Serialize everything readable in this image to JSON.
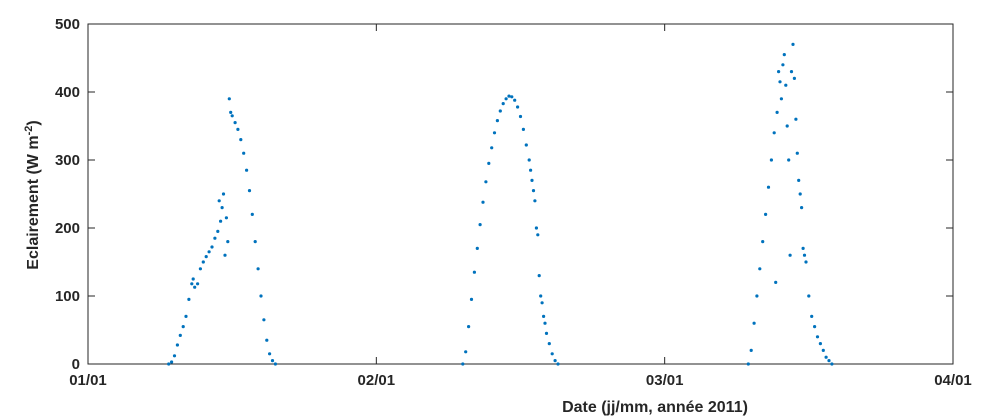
{
  "chart_data": {
    "type": "scatter",
    "xlabel": "Date (jj/mm, année 2011)",
    "ylabel_main": "Eclairement (W m",
    "ylabel_sup": "-2",
    "ylabel_close": ")",
    "x_range_days": [
      0,
      3
    ],
    "ylim": [
      0,
      500
    ],
    "x_tick_values": [
      0,
      1,
      2,
      3
    ],
    "x_ticks": [
      "01/01",
      "02/01",
      "03/01",
      "04/01"
    ],
    "y_ticks": [
      0,
      100,
      200,
      300,
      400,
      500
    ],
    "y_tick_labels": [
      "0",
      "100",
      "200",
      "300",
      "400",
      "500"
    ],
    "grid": false,
    "marker_color": "#0072BD",
    "series": [
      {
        "values": [
          [
            0.28,
            0
          ],
          [
            0.29,
            3
          ],
          [
            0.3,
            12
          ],
          [
            0.31,
            28
          ],
          [
            0.32,
            42
          ],
          [
            0.33,
            55
          ],
          [
            0.34,
            70
          ],
          [
            0.35,
            95
          ],
          [
            0.36,
            118
          ],
          [
            0.365,
            125
          ],
          [
            0.37,
            113
          ],
          [
            0.38,
            118
          ],
          [
            0.39,
            140
          ],
          [
            0.4,
            150
          ],
          [
            0.41,
            158
          ],
          [
            0.42,
            165
          ],
          [
            0.43,
            172
          ],
          [
            0.44,
            185
          ],
          [
            0.45,
            195
          ],
          [
            0.455,
            240
          ],
          [
            0.46,
            210
          ],
          [
            0.465,
            230
          ],
          [
            0.47,
            250
          ],
          [
            0.475,
            160
          ],
          [
            0.48,
            215
          ],
          [
            0.485,
            180
          ],
          [
            0.49,
            390
          ],
          [
            0.495,
            370
          ],
          [
            0.5,
            365
          ],
          [
            0.51,
            355
          ],
          [
            0.52,
            345
          ],
          [
            0.53,
            330
          ],
          [
            0.54,
            310
          ],
          [
            0.55,
            285
          ],
          [
            0.56,
            255
          ],
          [
            0.57,
            220
          ],
          [
            0.58,
            180
          ],
          [
            0.59,
            140
          ],
          [
            0.6,
            100
          ],
          [
            0.61,
            65
          ],
          [
            0.62,
            35
          ],
          [
            0.63,
            15
          ],
          [
            0.64,
            5
          ],
          [
            0.65,
            0
          ]
        ]
      },
      {
        "values": [
          [
            1.3,
            0
          ],
          [
            1.31,
            18
          ],
          [
            1.32,
            55
          ],
          [
            1.33,
            95
          ],
          [
            1.34,
            135
          ],
          [
            1.35,
            170
          ],
          [
            1.36,
            205
          ],
          [
            1.37,
            238
          ],
          [
            1.38,
            268
          ],
          [
            1.39,
            295
          ],
          [
            1.4,
            318
          ],
          [
            1.41,
            340
          ],
          [
            1.42,
            358
          ],
          [
            1.43,
            372
          ],
          [
            1.44,
            383
          ],
          [
            1.45,
            390
          ],
          [
            1.46,
            394
          ],
          [
            1.47,
            393
          ],
          [
            1.48,
            388
          ],
          [
            1.49,
            378
          ],
          [
            1.5,
            364
          ],
          [
            1.51,
            345
          ],
          [
            1.52,
            322
          ],
          [
            1.53,
            300
          ],
          [
            1.535,
            285
          ],
          [
            1.54,
            270
          ],
          [
            1.545,
            255
          ],
          [
            1.55,
            240
          ],
          [
            1.555,
            200
          ],
          [
            1.56,
            190
          ],
          [
            1.565,
            130
          ],
          [
            1.57,
            100
          ],
          [
            1.575,
            90
          ],
          [
            1.58,
            70
          ],
          [
            1.585,
            60
          ],
          [
            1.59,
            45
          ],
          [
            1.6,
            30
          ],
          [
            1.61,
            15
          ],
          [
            1.62,
            5
          ],
          [
            1.63,
            0
          ]
        ]
      },
      {
        "values": [
          [
            2.29,
            0
          ],
          [
            2.3,
            20
          ],
          [
            2.31,
            60
          ],
          [
            2.32,
            100
          ],
          [
            2.33,
            140
          ],
          [
            2.34,
            180
          ],
          [
            2.35,
            220
          ],
          [
            2.36,
            260
          ],
          [
            2.37,
            300
          ],
          [
            2.38,
            340
          ],
          [
            2.385,
            120
          ],
          [
            2.39,
            370
          ],
          [
            2.395,
            430
          ],
          [
            2.4,
            415
          ],
          [
            2.405,
            390
          ],
          [
            2.41,
            440
          ],
          [
            2.415,
            455
          ],
          [
            2.42,
            410
          ],
          [
            2.425,
            350
          ],
          [
            2.43,
            300
          ],
          [
            2.435,
            160
          ],
          [
            2.44,
            430
          ],
          [
            2.445,
            470
          ],
          [
            2.45,
            420
          ],
          [
            2.455,
            360
          ],
          [
            2.46,
            310
          ],
          [
            2.465,
            270
          ],
          [
            2.47,
            250
          ],
          [
            2.475,
            230
          ],
          [
            2.48,
            170
          ],
          [
            2.485,
            160
          ],
          [
            2.49,
            150
          ],
          [
            2.5,
            100
          ],
          [
            2.51,
            70
          ],
          [
            2.52,
            55
          ],
          [
            2.53,
            40
          ],
          [
            2.54,
            30
          ],
          [
            2.55,
            20
          ],
          [
            2.56,
            10
          ],
          [
            2.57,
            5
          ],
          [
            2.58,
            0
          ]
        ]
      }
    ]
  }
}
